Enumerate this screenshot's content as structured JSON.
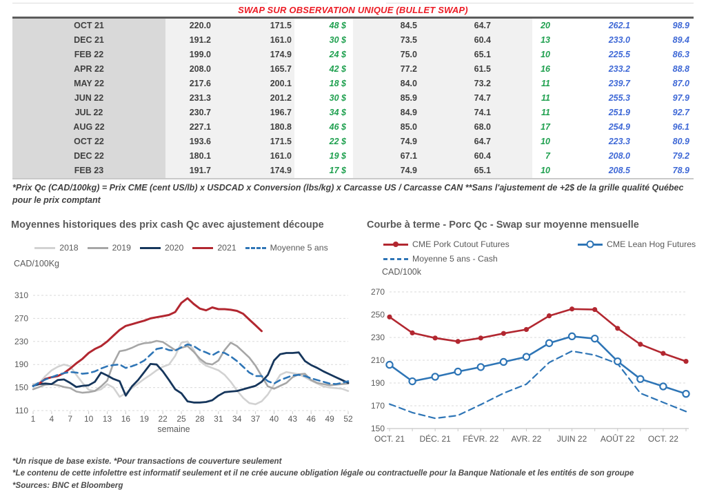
{
  "table": {
    "title": "SWAP SUR OBSERVATION UNIQUE (BULLET SWAP)",
    "rows": [
      [
        "OCT 21",
        "220.0",
        "171.5",
        "48 $",
        "84.5",
        "64.7",
        "20",
        "262.1",
        "98.9"
      ],
      [
        "DEC 21",
        "191.2",
        "161.0",
        "30 $",
        "73.5",
        "60.4",
        "13",
        "233.0",
        "89.4"
      ],
      [
        "FEB 22",
        "199.0",
        "174.9",
        "24 $",
        "75.0",
        "65.1",
        "10",
        "225.5",
        "86.3"
      ],
      [
        "APR 22",
        "208.0",
        "165.7",
        "42 $",
        "77.2",
        "61.5",
        "16",
        "233.2",
        "88.8"
      ],
      [
        "MAY 22",
        "217.6",
        "200.1",
        "18 $",
        "84.0",
        "73.2",
        "11",
        "239.7",
        "87.0"
      ],
      [
        "JUN 22",
        "231.3",
        "201.2",
        "30 $",
        "85.9",
        "74.7",
        "11",
        "255.3",
        "97.9"
      ],
      [
        "JUL 22",
        "230.7",
        "196.7",
        "34 $",
        "84.9",
        "74.1",
        "11",
        "251.9",
        "92.7"
      ],
      [
        "AUG 22",
        "227.1",
        "180.8",
        "46 $",
        "85.0",
        "68.0",
        "17",
        "254.9",
        "96.1"
      ],
      [
        "OCT 22",
        "193.6",
        "171.5",
        "22 $",
        "74.9",
        "64.7",
        "10",
        "223.3",
        "80.9"
      ],
      [
        "DEC 22",
        "180.1",
        "161.0",
        "19 $",
        "67.1",
        "60.4",
        "7",
        "208.0",
        "79.2"
      ],
      [
        "FEB 23",
        "191.7",
        "174.9",
        "17 $",
        "74.9",
        "65.1",
        "10",
        "208.5",
        "78.9"
      ]
    ],
    "footnote": "*Prix Qc (CAD/100kg) = Prix CME (cent US/lb) x USDCAD x Conversion (lbs/kg) x Carcasse US / Carcasse CAN **Sans l'ajustement de +2$ de la grille qualité Québec pour le prix comptant"
  },
  "chart_data": [
    {
      "type": "line",
      "title": "Moyennes historiques des prix cash Qc avec ajustement découpe",
      "ylabel": "CAD/100Kg",
      "xlabel": "semaine",
      "ylim": [
        110,
        310
      ],
      "yticks": [
        110,
        150,
        190,
        230,
        270,
        310
      ],
      "xticks": [
        1,
        4,
        7,
        10,
        13,
        16,
        19,
        22,
        25,
        28,
        31,
        34,
        37,
        40,
        43,
        46,
        49,
        52
      ],
      "x_range": [
        1,
        52
      ],
      "grid": "dashed-horizontal",
      "legend_position": "top",
      "series": [
        {
          "name": "2018",
          "color": "#D2D2D2",
          "style": "solid",
          "values": [
            156,
            158,
            170,
            180,
            186,
            190,
            187,
            172,
            158,
            146,
            144,
            147,
            156,
            150,
            134,
            140,
            149,
            157,
            165,
            172,
            180,
            186,
            190,
            205,
            228,
            230,
            215,
            196,
            188,
            184,
            180,
            172,
            160,
            145,
            132,
            123,
            121,
            126,
            138,
            155,
            172,
            177,
            175,
            173,
            168,
            162,
            157,
            152,
            150,
            149,
            148,
            144
          ]
        },
        {
          "name": "2019",
          "color": "#A6A6A6",
          "style": "solid",
          "values": [
            147,
            151,
            155,
            156,
            154,
            151,
            149,
            143,
            141,
            142,
            144,
            152,
            162,
            192,
            213,
            215,
            219,
            224,
            227,
            228,
            231,
            229,
            222,
            215,
            219,
            222,
            212,
            200,
            192,
            190,
            197,
            215,
            228,
            222,
            212,
            202,
            188,
            170,
            152,
            148,
            153,
            158,
            168,
            173,
            174,
            163,
            158,
            156,
            154,
            155,
            156,
            157
          ]
        },
        {
          "name": "2020",
          "color": "#16365C",
          "style": "solid",
          "values": [
            153,
            156,
            157,
            156,
            163,
            164,
            158,
            151,
            153,
            154,
            160,
            176,
            171,
            165,
            161,
            136,
            152,
            163,
            177,
            191,
            190,
            178,
            163,
            147,
            140,
            126,
            124,
            124,
            125,
            128,
            136,
            142,
            143,
            144,
            147,
            150,
            153,
            160,
            172,
            197,
            208,
            210,
            210,
            211,
            196,
            189,
            184,
            178,
            173,
            168,
            163,
            158
          ]
        },
        {
          "name": "2021",
          "color": "#B22730",
          "style": "solid",
          "values": [
            null,
            157,
            165,
            168,
            170,
            175,
            183,
            192,
            200,
            210,
            217,
            222,
            230,
            240,
            250,
            257,
            260,
            263,
            266,
            270,
            272,
            274,
            276,
            281,
            297,
            305,
            295,
            287,
            284,
            289,
            286,
            286,
            285,
            283,
            278,
            268,
            258,
            248,
            null,
            null,
            null,
            null,
            null,
            null,
            null,
            null,
            null,
            null,
            null,
            null,
            null,
            null
          ]
        },
        {
          "name": "Moyenne 5 ans",
          "color": "#2E75B6",
          "style": "dashed",
          "values": [
            152,
            159,
            164,
            168,
            172,
            175,
            177,
            176,
            174,
            175,
            178,
            183,
            187,
            189,
            190,
            184,
            187,
            191,
            197,
            207,
            217,
            219,
            215,
            214,
            220,
            225,
            222,
            215,
            211,
            206,
            212,
            210,
            204,
            196,
            186,
            176,
            170,
            170,
            161,
            157,
            163,
            167,
            171,
            172,
            170,
            166,
            163,
            160,
            157,
            156,
            158,
            161
          ]
        }
      ]
    },
    {
      "type": "line",
      "title": "Courbe à terme - Porc Qc - Swap sur moyenne mensuelle",
      "ylabel": "CAD/100k",
      "xlabel": "",
      "ylim": [
        150,
        270
      ],
      "yticks": [
        150,
        170,
        190,
        210,
        230,
        250,
        270
      ],
      "categories": [
        "OCT. 21",
        "NOV. 21",
        "DÉC. 21",
        "JANV. 22",
        "FÉVR. 22",
        "MARS 22",
        "AVR. 22",
        "MAI 22",
        "JUIN 22",
        "JUIL. 22",
        "AOÛT 22",
        "SEPT. 22",
        "OCT. 22",
        "NOV. 22"
      ],
      "xtick_indices": [
        0,
        2,
        4,
        6,
        8,
        10,
        12
      ],
      "grid": "dashed-horizontal",
      "legend_position": "top",
      "series": [
        {
          "name": "CME Pork Cutout Futures",
          "color": "#B22730",
          "style": "solid",
          "marker": "filled",
          "values": [
            248,
            234,
            229.5,
            226.5,
            229.5,
            233.5,
            237,
            249,
            255,
            254.5,
            238,
            224,
            216,
            209
          ]
        },
        {
          "name": "CME Lean Hog Futures",
          "color": "#2E75B6",
          "style": "solid",
          "marker": "open",
          "values": [
            206,
            191.5,
            195.5,
            200,
            204,
            208.5,
            213,
            225,
            231,
            229,
            209,
            193.5,
            187,
            180.5
          ]
        },
        {
          "name": "Moyenne 5 ans - Cash",
          "color": "#2E75B6",
          "style": "dashed",
          "values": [
            171.5,
            164,
            159,
            161.5,
            171,
            181,
            189,
            208,
            218,
            214.5,
            207,
            181,
            173,
            165
          ]
        }
      ]
    }
  ],
  "footer": {
    "line1": "*Un risque de base existe. *Pour transactions de couverture seulement",
    "line2": "*Le contenu de cette infolettre est informatif seulement et il ne crée aucune obligation légale ou contractuelle pour la Banque Nationale et les entités de son groupe",
    "line3": "*Sources: BNC et Bloomberg"
  },
  "colors": {
    "title_red": "#EC1B24",
    "green_text": "#1FA04F",
    "blue_text": "#3E68D6",
    "dark_text": "#3F3F3F",
    "axis_text": "#595959",
    "gridline": "#D9D9D9",
    "month_col_bg": "#D9D9D9",
    "value_col_bg": "#F1F1F1",
    "series_red": "#B22730",
    "series_blue": "#2E75B6",
    "series_navy": "#16365C"
  }
}
